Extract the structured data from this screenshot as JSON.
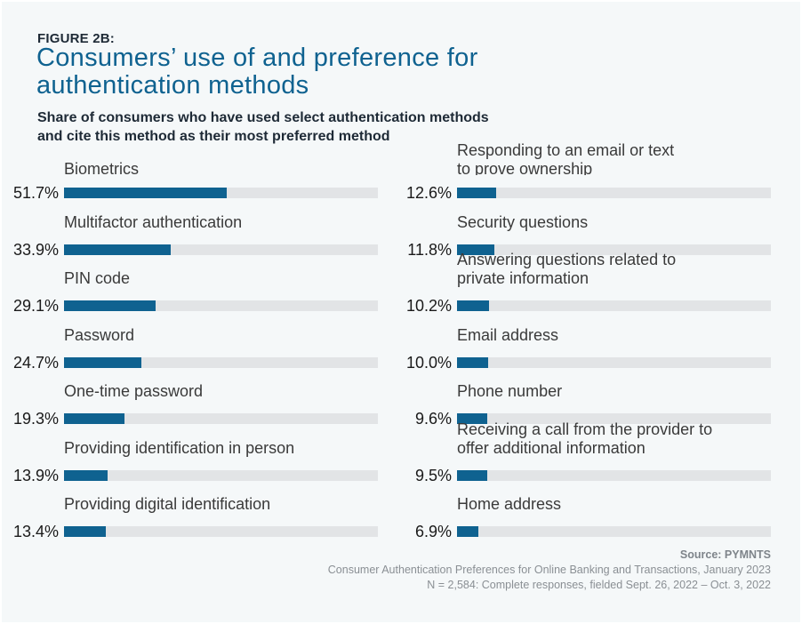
{
  "header": {
    "figure_label": "FIGURE 2B:",
    "title_line1": "Consumers’ use of and preference for",
    "title_line2": "authentication methods",
    "subtitle_line1": "Share of consumers who have used select authentication methods",
    "subtitle_line2": "and cite this method as their most preferred method"
  },
  "colors": {
    "bar": "#0f6290",
    "track": "#e2e4e6",
    "title": "#0f6290",
    "background": "#f5f8f9"
  },
  "chart_data": {
    "type": "bar",
    "orientation": "horizontal",
    "title": "Consumers’ use of and preference for authentication methods",
    "subtitle": "Share of consumers who have used select authentication methods and cite this method as their most preferred method",
    "unit": "%",
    "xlim": [
      0,
      100
    ],
    "columns": [
      {
        "categories": [
          "Biometrics",
          "Multifactor authentication",
          "PIN code",
          "Password",
          "One-time password",
          "Providing identification in person",
          "Providing digital identification"
        ],
        "category_lines": [
          [
            "Biometrics"
          ],
          [
            "Multifactor authentication"
          ],
          [
            "PIN code"
          ],
          [
            "Password"
          ],
          [
            "One-time password"
          ],
          [
            "Providing identification in person"
          ],
          [
            "Providing digital identification"
          ]
        ],
        "values": [
          51.7,
          33.9,
          29.1,
          24.7,
          19.3,
          13.9,
          13.4
        ],
        "labels": [
          "51.7%",
          "33.9%",
          "29.1%",
          "24.7%",
          "19.3%",
          "13.9%",
          "13.4%"
        ]
      },
      {
        "categories": [
          "Responding to an email or text to prove ownership",
          "Security questions",
          "Answering questions related to private information",
          "Email address",
          "Phone number",
          "Receiving a call from the provider to offer additional information",
          "Home address"
        ],
        "category_lines": [
          [
            "Responding to an email or text",
            "to prove ownership"
          ],
          [
            "Security questions"
          ],
          [
            "Answering questions related to",
            "private information"
          ],
          [
            "Email address"
          ],
          [
            "Phone number"
          ],
          [
            "Receiving a call from the provider to",
            "offer additional information"
          ],
          [
            "Home address"
          ]
        ],
        "values": [
          12.6,
          11.8,
          10.2,
          10.0,
          9.6,
          9.5,
          6.9
        ],
        "labels": [
          "12.6%",
          "11.8%",
          "10.2%",
          "10.0%",
          "9.6%",
          "9.5%",
          "6.9%"
        ]
      }
    ]
  },
  "footer": {
    "source": "Source: PYMNTS",
    "report": "Consumer Authentication Preferences for Online Banking and Transactions, January 2023",
    "sample": "N = 2,584: Complete responses, fielded Sept. 26, 2022 – Oct. 3, 2022"
  }
}
